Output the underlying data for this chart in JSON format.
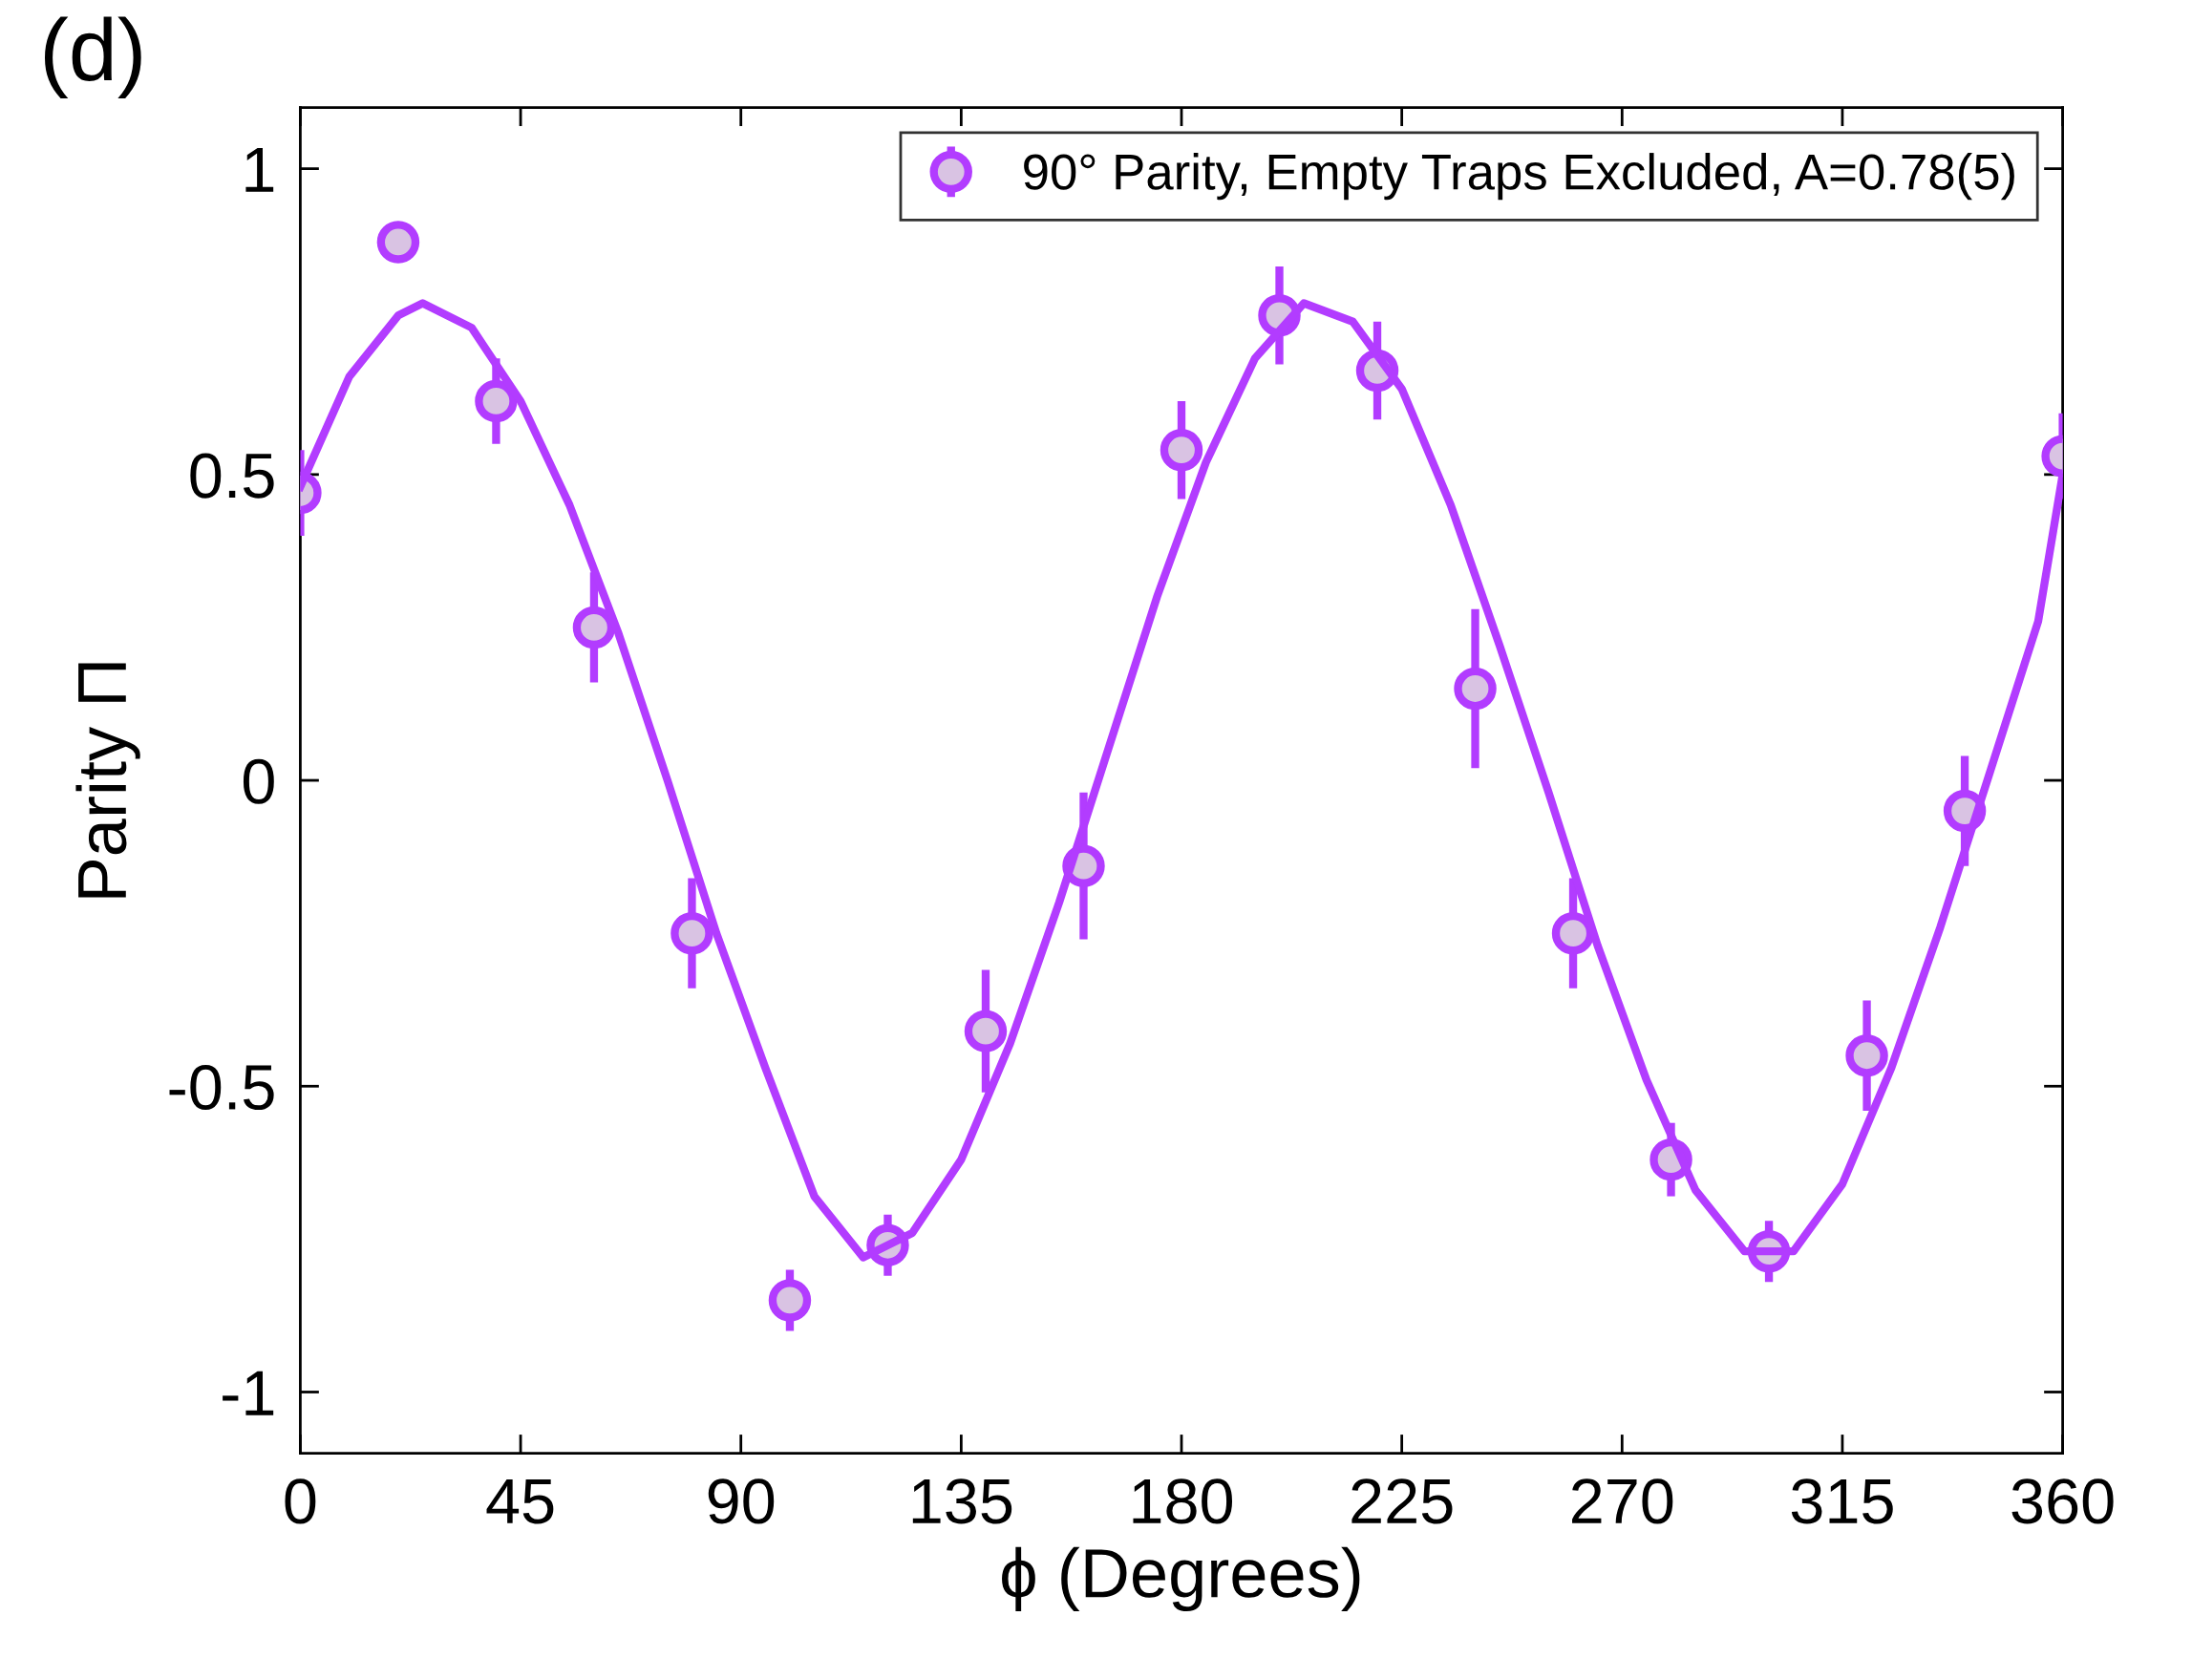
{
  "chart_data": {
    "type": "scatter",
    "title": "(d)",
    "xlabel": "ϕ (Degrees)",
    "ylabel": "Parity Π",
    "xlim": [
      0,
      360
    ],
    "xticks": [
      0,
      45,
      90,
      135,
      180,
      225,
      270,
      315,
      360
    ],
    "ylim": [
      -1.1,
      1.1
    ],
    "yticks": [
      {
        "value": -1,
        "label": "-1"
      },
      {
        "value": -0.5,
        "label": "-0.5"
      },
      0,
      0.5,
      1
    ],
    "grid": false,
    "legend": "top right",
    "series": [
      {
        "name": "90° Parity, Empty Traps Excluded, A=0.78(5)",
        "color": "#b23cff",
        "marker": "circle",
        "x": [
          0,
          20,
          40,
          60,
          80,
          100,
          120,
          140,
          160,
          180,
          200,
          220,
          240,
          260,
          280,
          300,
          320,
          340,
          360
        ],
        "values": [
          0.47,
          0.88,
          0.62,
          0.25,
          -0.25,
          -0.85,
          -0.76,
          -0.41,
          -0.14,
          0.54,
          0.76,
          0.67,
          0.15,
          -0.25,
          -0.62,
          -0.77,
          -0.45,
          -0.05,
          0.53
        ],
        "errors": [
          0.07,
          0.03,
          0.07,
          0.09,
          0.09,
          0.05,
          0.05,
          0.1,
          0.12,
          0.08,
          0.08,
          0.08,
          0.13,
          0.09,
          0.06,
          0.05,
          0.09,
          0.09,
          0.07
        ]
      },
      {
        "type": "line",
        "color": "#b23cff",
        "line_style": "solid",
        "marker": "none",
        "x": [
          0,
          10,
          20,
          25,
          35,
          45,
          55,
          65,
          75,
          85,
          95,
          105,
          115,
          125,
          135,
          145,
          155,
          165,
          175,
          185,
          195,
          205,
          215,
          225,
          235,
          245,
          255,
          265,
          275,
          285,
          295,
          305,
          315,
          325,
          335,
          345,
          355,
          360
        ],
        "values": [
          0.48,
          0.66,
          0.76,
          0.78,
          0.74,
          0.62,
          0.45,
          0.24,
          0.0,
          -0.25,
          -0.47,
          -0.68,
          -0.78,
          -0.74,
          -0.62,
          -0.43,
          -0.2,
          0.05,
          0.3,
          0.52,
          0.69,
          0.78,
          0.75,
          0.64,
          0.45,
          0.22,
          -0.02,
          -0.27,
          -0.49,
          -0.67,
          -0.77,
          -0.77,
          -0.66,
          -0.47,
          -0.24,
          0.01,
          0.26,
          0.5
        ]
      }
    ]
  }
}
